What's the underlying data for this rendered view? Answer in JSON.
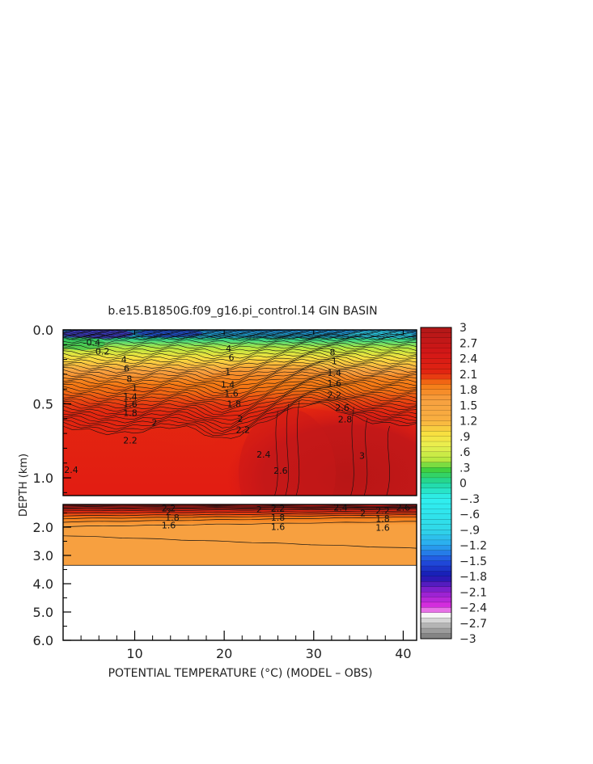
{
  "chart_data": {
    "type": "heatmap",
    "title": "b.e15.B1850G.f09_g16.pi_control.14 GIN BASIN",
    "xlabel": "POTENTIAL TEMPERATURE (°C) (MODEL – OBS)",
    "ylabel": "DEPTH (km)",
    "xlim": [
      2,
      41.5
    ],
    "x_ticks": [
      "10",
      "20",
      "30",
      "40"
    ],
    "x_tick_values": [
      10,
      20,
      30,
      40
    ],
    "upper_panel": {
      "ylim": [
        0.0,
        1.12
      ],
      "y_ticks": [
        "0.0",
        "0.5",
        "1.0"
      ],
      "y_tick_values": [
        0.0,
        0.5,
        1.0
      ]
    },
    "lower_panel": {
      "ylim": [
        1.2,
        6.0
      ],
      "y_ticks": [
        "2.0",
        "3.0",
        "4.0",
        "5.0",
        "6.0"
      ],
      "y_tick_values": [
        2.0,
        3.0,
        4.0,
        5.0,
        6.0
      ],
      "data_bottom_depth": 3.35
    },
    "colorbar": {
      "labels": [
        "3",
        "2.7",
        "2.4",
        "2.1",
        "1.8",
        "1.5",
        "1.2",
        ".9",
        ".6",
        ".3",
        "0",
        "−.3",
        "−.6",
        "−.9",
        "−1.2",
        "−1.5",
        "−1.8",
        "−2.1",
        "−2.4",
        "−2.7",
        "−3"
      ],
      "label_values": [
        3,
        2.7,
        2.4,
        2.1,
        1.8,
        1.5,
        1.2,
        0.9,
        0.6,
        0.3,
        0,
        -0.3,
        -0.6,
        -0.9,
        -1.2,
        -1.5,
        -1.8,
        -2.1,
        -2.4,
        -2.7,
        -3
      ],
      "stops": [
        {
          "v": 3.0,
          "c": "#b01818"
        },
        {
          "v": 2.5,
          "c": "#d41717"
        },
        {
          "v": 2.1,
          "c": "#e32710"
        },
        {
          "v": 1.9,
          "c": "#f57a14"
        },
        {
          "v": 1.6,
          "c": "#f7a040"
        },
        {
          "v": 1.2,
          "c": "#f9b040"
        },
        {
          "v": 0.95,
          "c": "#f8e040"
        },
        {
          "v": 0.7,
          "c": "#e8f050"
        },
        {
          "v": 0.45,
          "c": "#b8e840"
        },
        {
          "v": 0.25,
          "c": "#40d040"
        },
        {
          "v": 0.0,
          "c": "#20d8a0"
        },
        {
          "v": -0.3,
          "c": "#30f0f0"
        },
        {
          "v": -0.9,
          "c": "#30d8e8"
        },
        {
          "v": -1.2,
          "c": "#2aa8f0"
        },
        {
          "v": -1.5,
          "c": "#2050e0"
        },
        {
          "v": -1.8,
          "c": "#1818b0"
        },
        {
          "v": -2.1,
          "c": "#9020d0"
        },
        {
          "v": -2.4,
          "c": "#e030e0"
        },
        {
          "v": -2.55,
          "c": "#f6f6f6"
        },
        {
          "v": -2.75,
          "c": "#b4b4b4"
        },
        {
          "v": -3.0,
          "c": "#787878"
        }
      ]
    },
    "upper_contour_labels": [
      {
        "x": 2.9,
        "y": 0.945,
        "text": "2.4"
      },
      {
        "x": 9.5,
        "y": 0.745,
        "text": "2.2"
      },
      {
        "x": 12.2,
        "y": 0.625,
        "text": "2"
      },
      {
        "x": 9.5,
        "y": 0.56,
        "text": "1.8"
      },
      {
        "x": 9.5,
        "y": 0.5,
        "text": "1.6"
      },
      {
        "x": 9.5,
        "y": 0.45,
        "text": "1.4"
      },
      {
        "x": 10.0,
        "y": 0.39,
        "text": "1"
      },
      {
        "x": 9.4,
        "y": 0.33,
        "text": "8"
      },
      {
        "x": 9.1,
        "y": 0.26,
        "text": "6"
      },
      {
        "x": 8.8,
        "y": 0.2,
        "text": "4"
      },
      {
        "x": 6.4,
        "y": 0.145,
        "text": "0.2"
      },
      {
        "x": 5.2,
        "y": 0.085,
        "text": "-0.4"
      },
      {
        "x": 20.5,
        "y": 0.125,
        "text": "4"
      },
      {
        "x": 20.8,
        "y": 0.185,
        "text": "6"
      },
      {
        "x": 20.4,
        "y": 0.28,
        "text": "1"
      },
      {
        "x": 20.4,
        "y": 0.37,
        "text": "1.4"
      },
      {
        "x": 20.8,
        "y": 0.43,
        "text": "1.6"
      },
      {
        "x": 21.1,
        "y": 0.5,
        "text": "1.8"
      },
      {
        "x": 21.8,
        "y": 0.6,
        "text": "2"
      },
      {
        "x": 22.1,
        "y": 0.675,
        "text": "2.2"
      },
      {
        "x": 24.4,
        "y": 0.84,
        "text": "2.4"
      },
      {
        "x": 26.3,
        "y": 0.95,
        "text": "2.6"
      },
      {
        "x": 32.1,
        "y": 0.15,
        "text": "8"
      },
      {
        "x": 32.3,
        "y": 0.21,
        "text": "1"
      },
      {
        "x": 32.3,
        "y": 0.29,
        "text": "1.4"
      },
      {
        "x": 32.3,
        "y": 0.36,
        "text": "1.6"
      },
      {
        "x": 32.3,
        "y": 0.44,
        "text": "2.2"
      },
      {
        "x": 33.2,
        "y": 0.525,
        "text": "2.6"
      },
      {
        "x": 33.5,
        "y": 0.605,
        "text": "2.8"
      },
      {
        "x": 35.4,
        "y": 0.85,
        "text": "3"
      }
    ],
    "lower_contour_labels": [
      {
        "x": 13.8,
        "y": 1.33,
        "text": "2.2"
      },
      {
        "x": 13.8,
        "y": 1.46,
        "text": "2"
      },
      {
        "x": 14.2,
        "y": 1.65,
        "text": "1.8"
      },
      {
        "x": 13.8,
        "y": 1.93,
        "text": "1.6"
      },
      {
        "x": 23.9,
        "y": 1.37,
        "text": "2"
      },
      {
        "x": 26.0,
        "y": 1.33,
        "text": "2.2"
      },
      {
        "x": 26.0,
        "y": 1.66,
        "text": "1.8"
      },
      {
        "x": 26.0,
        "y": 1.98,
        "text": "1.6"
      },
      {
        "x": 33.0,
        "y": 1.3,
        "text": "2.4"
      },
      {
        "x": 35.5,
        "y": 1.5,
        "text": "2"
      },
      {
        "x": 37.7,
        "y": 1.42,
        "text": "2.2"
      },
      {
        "x": 37.7,
        "y": 1.7,
        "text": "1.8"
      },
      {
        "x": 37.7,
        "y": 2.02,
        "text": "1.6"
      },
      {
        "x": 40.0,
        "y": 1.3,
        "text": "2.6"
      }
    ]
  }
}
